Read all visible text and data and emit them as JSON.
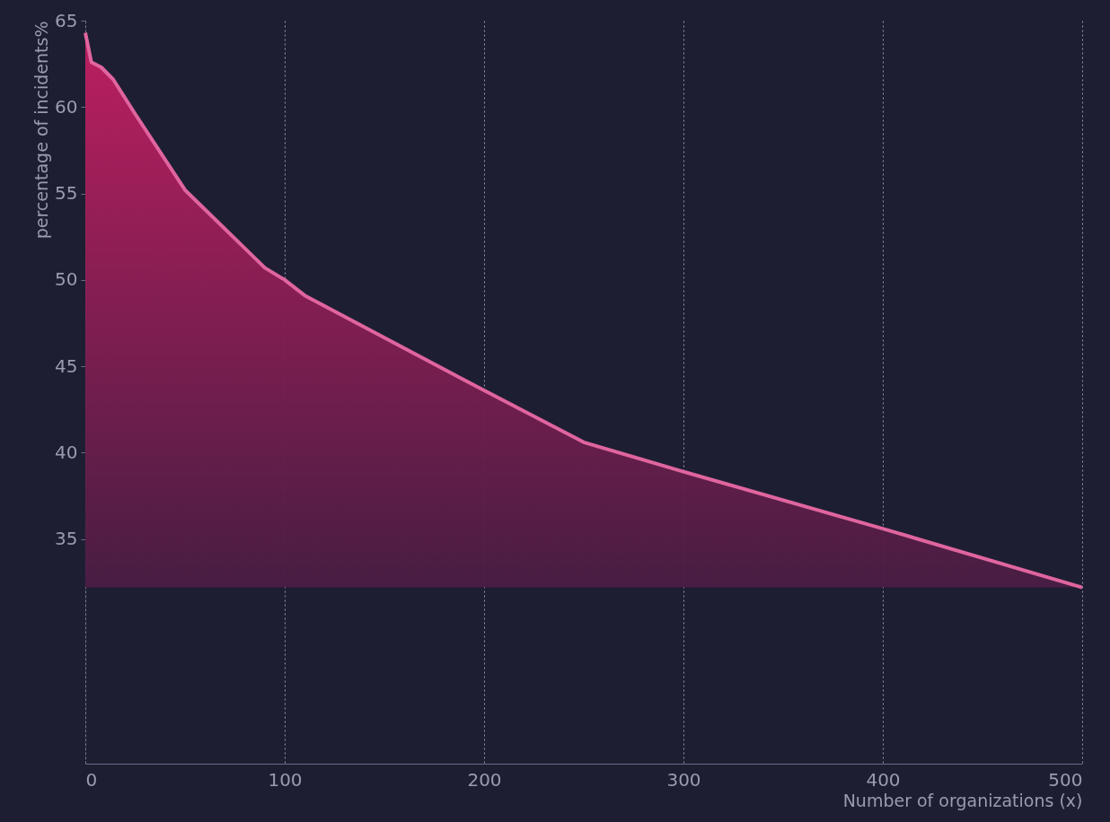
{
  "chart_data": {
    "type": "area",
    "xlabel": "Number of organizations (x)",
    "ylabel": "percentage of incidents%",
    "x": [
      0,
      3,
      8,
      14,
      25,
      50,
      90,
      100,
      110,
      200,
      250,
      300,
      400,
      500
    ],
    "series": [
      {
        "color": "#e0659f",
        "values": [
          64.3,
          62.6,
          62.3,
          61.6,
          59.6,
          55.2,
          50.7,
          50.0,
          49.1,
          43.6,
          40.6,
          38.9,
          35.6,
          32.2
        ]
      }
    ],
    "xlim": [
      0,
      500
    ],
    "xticks": [
      0,
      100,
      200,
      300,
      400,
      500
    ],
    "ylim": [
      22,
      65
    ],
    "yticks": [
      35,
      40,
      45,
      50,
      55,
      60,
      65
    ],
    "grid": "x"
  }
}
